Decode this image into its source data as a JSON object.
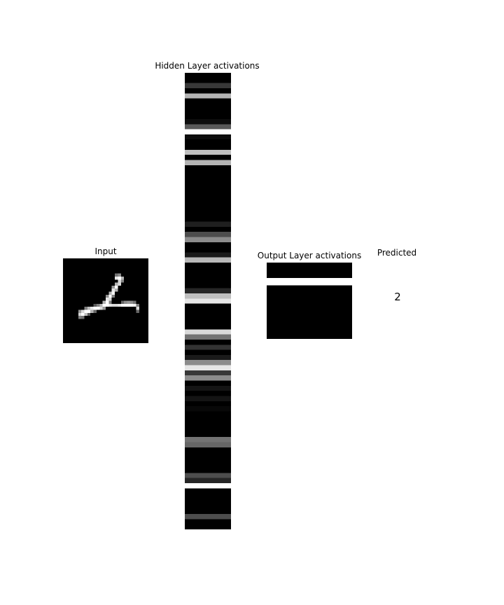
{
  "panels": {
    "input_title": "Input",
    "hidden_title": "Hidden Layer activations",
    "output_title": "Output Layer activations",
    "predicted_title": "Predicted",
    "predicted_value": "2"
  },
  "colors": {
    "background": "#ffffff",
    "image_bg": "#000000",
    "text": "#000000"
  },
  "input_pixels": {
    "grid_size": 28,
    "lit": [
      [
        5,
        17,
        0.45
      ],
      [
        5,
        18,
        0.55
      ],
      [
        6,
        17,
        0.9
      ],
      [
        6,
        18,
        1.0
      ],
      [
        6,
        19,
        0.7
      ],
      [
        7,
        18,
        0.85
      ],
      [
        7,
        19,
        0.5
      ],
      [
        8,
        17,
        0.7
      ],
      [
        8,
        18,
        0.85
      ],
      [
        9,
        16,
        0.6
      ],
      [
        9,
        17,
        1.0
      ],
      [
        10,
        16,
        0.9
      ],
      [
        10,
        17,
        0.7
      ],
      [
        11,
        15,
        0.7
      ],
      [
        11,
        16,
        0.95
      ],
      [
        12,
        14,
        0.55
      ],
      [
        12,
        15,
        1.0
      ],
      [
        12,
        16,
        0.5
      ],
      [
        13,
        14,
        0.9
      ],
      [
        13,
        15,
        0.85
      ],
      [
        14,
        13,
        0.7
      ],
      [
        14,
        14,
        1.0
      ],
      [
        14,
        15,
        0.5
      ],
      [
        14,
        19,
        0.4
      ],
      [
        14,
        20,
        0.55
      ],
      [
        14,
        21,
        0.6
      ],
      [
        14,
        22,
        0.55
      ],
      [
        14,
        23,
        0.45
      ],
      [
        15,
        10,
        0.35
      ],
      [
        15,
        11,
        0.5
      ],
      [
        15,
        12,
        0.7
      ],
      [
        15,
        13,
        1.0
      ],
      [
        15,
        14,
        1.0
      ],
      [
        15,
        15,
        0.9
      ],
      [
        15,
        16,
        0.85
      ],
      [
        15,
        17,
        0.85
      ],
      [
        15,
        18,
        0.9
      ],
      [
        15,
        19,
        1.0
      ],
      [
        15,
        20,
        1.0
      ],
      [
        15,
        21,
        1.0
      ],
      [
        15,
        22,
        1.0
      ],
      [
        15,
        23,
        0.95
      ],
      [
        15,
        24,
        0.5
      ],
      [
        16,
        7,
        0.5
      ],
      [
        16,
        8,
        0.75
      ],
      [
        16,
        9,
        0.9
      ],
      [
        16,
        10,
        1.0
      ],
      [
        16,
        11,
        1.0
      ],
      [
        16,
        12,
        0.85
      ],
      [
        16,
        13,
        0.6
      ],
      [
        16,
        24,
        0.85
      ],
      [
        17,
        5,
        0.6
      ],
      [
        17,
        6,
        0.85
      ],
      [
        17,
        7,
        1.0
      ],
      [
        17,
        8,
        1.0
      ],
      [
        17,
        9,
        0.7
      ],
      [
        17,
        10,
        0.4
      ],
      [
        17,
        24,
        0.4
      ],
      [
        18,
        5,
        0.85
      ],
      [
        18,
        6,
        1.0
      ],
      [
        18,
        7,
        0.75
      ],
      [
        18,
        8,
        0.35
      ],
      [
        19,
        5,
        0.5
      ],
      [
        19,
        6,
        0.45
      ]
    ]
  },
  "hidden_activations": [
    0.0,
    0.0,
    0.22,
    0.0,
    0.7,
    0.0,
    0.0,
    0.0,
    0.0,
    0.05,
    0.35,
    1.0,
    0.05,
    0.0,
    0.0,
    0.75,
    0.0,
    0.7,
    0.0,
    0.0,
    0.0,
    0.0,
    0.0,
    0.0,
    0.0,
    0.0,
    0.0,
    0.0,
    0.0,
    0.12,
    0.0,
    0.3,
    0.55,
    0.0,
    0.0,
    0.1,
    0.72,
    0.0,
    0.0,
    0.0,
    0.0,
    0.0,
    0.15,
    0.75,
    0.9,
    0.0,
    0.0,
    0.0,
    0.0,
    0.0,
    0.85,
    0.45,
    0.0,
    0.2,
    0.0,
    0.1,
    0.55,
    0.9,
    0.22,
    0.55,
    0.0,
    0.08,
    0.0,
    0.08,
    0.0,
    0.03,
    0.0,
    0.0,
    0.0,
    0.0,
    0.0,
    0.45,
    0.4,
    0.0,
    0.0,
    0.0,
    0.0,
    0.0,
    0.3,
    0.15,
    1.0,
    0.0,
    0.0,
    0.0,
    0.0,
    0.0,
    0.3,
    0.0,
    0.0,
    0.0,
    0.18,
    0.0,
    0.0
  ],
  "output_activations": [
    0.0,
    0.0,
    1.0,
    0.0,
    0.0,
    0.0,
    0.0,
    0.0,
    0.0,
    0.0
  ]
}
